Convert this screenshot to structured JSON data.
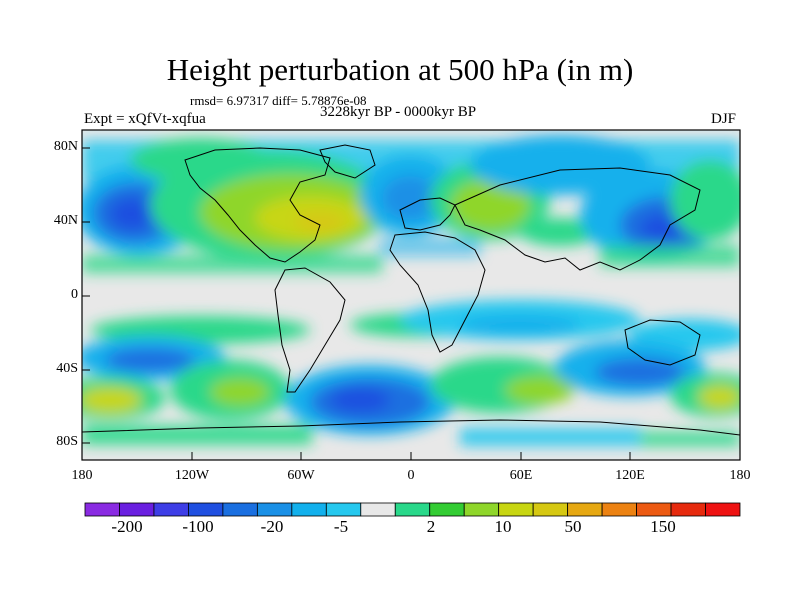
{
  "title": "Height perturbation at 500 hPa (in m)",
  "stats": "rmsd= 6.97317 diff= 5.78876e-08",
  "experiment": "Expt = xQfVt-xqfua",
  "period": "3228kyr BP - 0000kyr BP",
  "season": "DJF",
  "map": {
    "lat_ticks": [
      "80N",
      "40N",
      "0",
      "40S",
      "80S"
    ],
    "lon_ticks": [
      "180",
      "120W",
      "60W",
      "0",
      "60E",
      "120E",
      "180"
    ],
    "region": "global",
    "projection": "cylindrical-equidistant"
  },
  "colorbar": {
    "labels": [
      "-200",
      "-100",
      "-20",
      "-5",
      "2",
      "10",
      "50",
      "150"
    ],
    "colors": [
      "#8a2be2",
      "#6a1fe0",
      "#3e3ee6",
      "#1f4fe0",
      "#1a6fe0",
      "#1a90e6",
      "#12b0ec",
      "#26c8ee",
      "#e8e8e8",
      "#29d88a",
      "#33cc33",
      "#8fd62a",
      "#c8d612",
      "#d6c812",
      "#e6a812",
      "#ec8212",
      "#ec5a12",
      "#e62a0e",
      "#ee1212"
    ]
  }
}
